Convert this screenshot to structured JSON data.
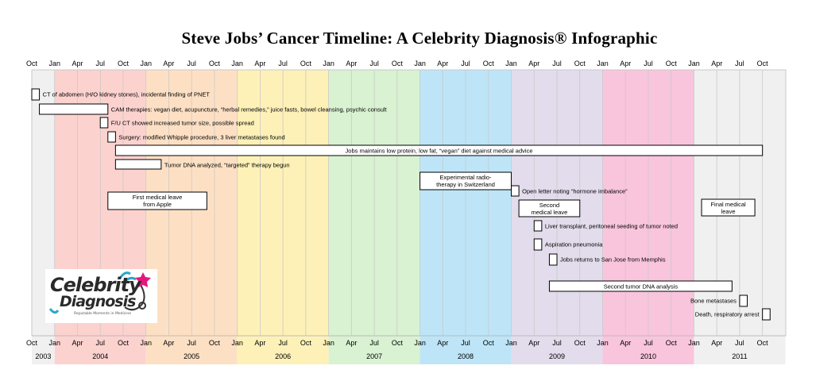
{
  "chart_data": {
    "type": "timeline",
    "title": "Steve Jobs’ Cancer Timeline: A Celebrity Diagnosis® Infographic",
    "month_ticks": [
      "Oct",
      "Jan",
      "Apr",
      "Jul",
      "Oct",
      "Jan",
      "Apr",
      "Jul",
      "Oct",
      "Jan",
      "Apr",
      "Jul",
      "Oct",
      "Jan",
      "Apr",
      "Jul",
      "Oct",
      "Jan",
      "Apr",
      "Jul",
      "Oct",
      "Jan",
      "Apr",
      "Jul",
      "Oct",
      "Jan",
      "Apr",
      "Jul",
      "Oct",
      "Jan",
      "Apr",
      "Jul",
      "Oct"
    ],
    "years": [
      {
        "label": "2003",
        "color": "#f0f0f0"
      },
      {
        "label": "2004",
        "color": "#fcd2cf"
      },
      {
        "label": "2005",
        "color": "#fde0c4"
      },
      {
        "label": "2006",
        "color": "#fdf1b8"
      },
      {
        "label": "2007",
        "color": "#d8f2d2"
      },
      {
        "label": "2008",
        "color": "#bde5f7"
      },
      {
        "label": "2009",
        "color": "#e3dcec"
      },
      {
        "label": "2010",
        "color": "#f9c5dc"
      },
      {
        "label": "2011",
        "color": "#f0f0f0"
      }
    ],
    "events": [
      {
        "start": 0,
        "end": 1,
        "label": "CT of abdomen (H/O kidney stones), incidental finding of PNET",
        "label_pos": "right"
      },
      {
        "start": 1,
        "end": 10,
        "label": "CAM therapies:  vegan diet, acupuncture, “herbal remedies,” juice fasts, bowel cleansing, psychic consult",
        "label_pos": "right"
      },
      {
        "start": 9,
        "end": 10,
        "label": "F/U CT showed increased tumor size, possible spread",
        "label_pos": "right"
      },
      {
        "start": 10,
        "end": 11,
        "label": "Surgery:  modified Whipple procedure, 3 liver metastases  found",
        "label_pos": "right"
      },
      {
        "start": 11,
        "end": 96,
        "label": "Jobs maintains low protein,  low fat, “vegan” diet against medical advice",
        "label_pos": "inside"
      },
      {
        "start": 11,
        "end": 17,
        "label": "Tumor DNA analyzed, “targeted”  therapy begun",
        "label_pos": "right"
      },
      {
        "start": 51,
        "end": 63,
        "label": "Experimental  radio-|therapy  in Switzerland",
        "label_pos": "inside"
      },
      {
        "start": 63,
        "end": 64,
        "label": "Open letter noting “hormone imbalance”",
        "label_pos": "right"
      },
      {
        "start": 10,
        "end": 23,
        "label": "First medical  leave|from Apple",
        "label_pos": "inside"
      },
      {
        "start": 64,
        "end": 72,
        "label": "Second|medical  leave",
        "label_pos": "inside"
      },
      {
        "start": 88,
        "end": 95,
        "label": "Final medical|leave",
        "label_pos": "inside"
      },
      {
        "start": 66,
        "end": 67,
        "label": "Liver transplant,  peritoneal seeding of tumor noted",
        "label_pos": "right"
      },
      {
        "start": 66,
        "end": 67,
        "label": "Aspiration pneumonia",
        "label_pos": "right"
      },
      {
        "start": 68,
        "end": 69,
        "label": "Jobs returns to San Jose from Memphis",
        "label_pos": "right"
      },
      {
        "start": 68,
        "end": 92,
        "label": "Second tumor DNA analysis",
        "label_pos": "inside"
      },
      {
        "start": 93,
        "end": 94,
        "label": "Bone metastases",
        "label_pos": "left"
      },
      {
        "start": 96,
        "end": 97,
        "label": "Death, respiratory  arrest",
        "label_pos": "left"
      }
    ]
  },
  "logo": {
    "line1": "Celebrity",
    "line2": "Diagnosis",
    "tagline": "Reputable Moments in Medicine"
  }
}
